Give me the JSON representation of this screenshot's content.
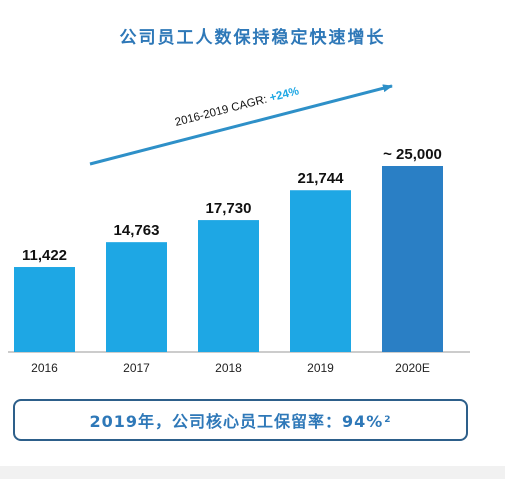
{
  "chart_data": {
    "type": "bar",
    "title": "公司员工人数保持稳定快速增长",
    "categories": [
      "2016",
      "2017",
      "2018",
      "2019",
      "2020E"
    ],
    "values": [
      11422,
      14763,
      17730,
      21744,
      25000
    ],
    "value_labels": [
      "11,422",
      "14,763",
      "17,730",
      "21,744",
      "~ 25,000"
    ],
    "colors": [
      "#1ea7e4",
      "#1ea7e4",
      "#1ea7e4",
      "#1ea7e4",
      "#2a7fc5"
    ],
    "ylim": [
      0,
      25000
    ],
    "grid": false,
    "annotation": {
      "label": "2016-2019 CAGR: ",
      "value": "+24%",
      "value_color": "#1ea7e4",
      "arrow_color": "#2e90c8"
    }
  },
  "footer": {
    "retention_text": "2019年，公司核心员工保留率：94%",
    "retention_note": "2"
  }
}
